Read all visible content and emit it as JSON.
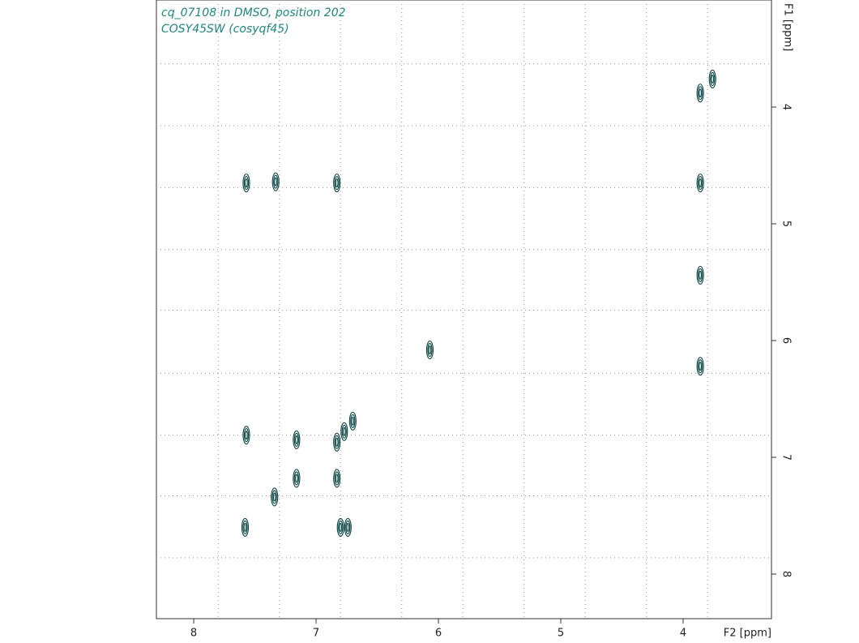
{
  "chart_data": {
    "type": "contour",
    "title": "cq_07108 in DMSO, position 202",
    "subtitle": "COSY45SW (cosyqf45)",
    "xlabel": "F2 [ppm]",
    "ylabel": "F1 [ppm]",
    "xlim": [
      8.305,
      3.278
    ],
    "ylim": [
      3.083,
      8.382
    ],
    "xticks": [
      8,
      7,
      6,
      5,
      4
    ],
    "yticks": [
      4,
      5,
      6,
      7,
      8
    ],
    "xgrid": [
      7.8,
      7.3,
      6.8,
      6.3,
      5.8,
      5.3,
      4.8,
      4.3,
      3.8
    ],
    "ygrid": [
      3.63,
      4.16,
      4.69,
      5.22,
      5.74,
      6.28,
      6.81,
      7.33,
      7.86
    ],
    "grid": true,
    "color": "#0d4747",
    "x": [
      3.86,
      3.76,
      3.86,
      3.86,
      3.86,
      6.07,
      7.57,
      7.33,
      6.83,
      7.57,
      7.16,
      6.83,
      6.77,
      6.7,
      7.16,
      6.83,
      7.34,
      7.58,
      6.8,
      6.74
    ],
    "values": [
      3.88,
      3.76,
      4.65,
      5.44,
      6.22,
      6.08,
      4.65,
      4.64,
      4.65,
      6.81,
      6.85,
      6.87,
      6.78,
      6.69,
      7.18,
      7.18,
      7.34,
      7.6,
      7.6,
      7.6
    ]
  }
}
